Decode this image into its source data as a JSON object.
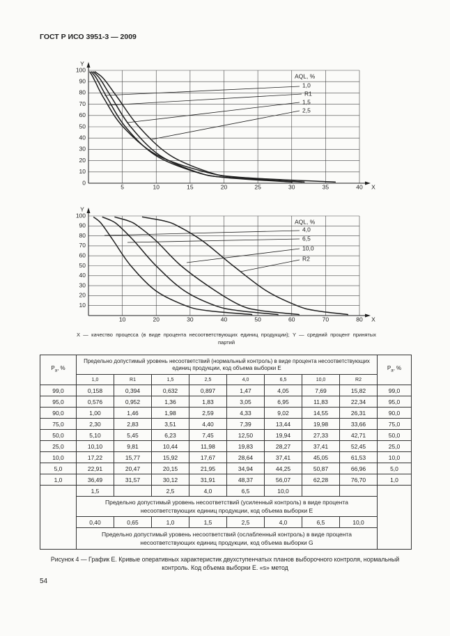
{
  "header": {
    "title": "ГОСТ Р ИСО 3951-3 — 2009"
  },
  "chart_data": [
    {
      "type": "line",
      "ylabel": "Y",
      "xlabel": "X",
      "legend_title": "AQL, %",
      "xlim": [
        0,
        40
      ],
      "ylim": [
        0,
        100
      ],
      "xticks": [
        5,
        10,
        15,
        20,
        25,
        30,
        35,
        40
      ],
      "yticks": [
        0,
        10,
        20,
        30,
        40,
        50,
        60,
        70,
        80,
        90,
        100
      ],
      "grid": true,
      "series": [
        {
          "name": "1,0",
          "color": "#1e1e1e",
          "x": [
            0.158,
            0.576,
            1.0,
            2.3,
            5.1,
            10.1,
            17.22,
            22.91,
            36.49
          ],
          "values": [
            99,
            95,
            90,
            75,
            50,
            25,
            10,
            5,
            1
          ]
        },
        {
          "name": "R1",
          "color": "#1e1e1e",
          "x": [
            0.394,
            0.952,
            1.46,
            2.83,
            5.45,
            9.81,
            15.77,
            20.47,
            31.57
          ],
          "values": [
            99,
            95,
            90,
            75,
            50,
            25,
            10,
            5,
            1
          ]
        },
        {
          "name": "1,5",
          "color": "#1e1e1e",
          "x": [
            0.632,
            1.36,
            1.98,
            3.51,
            6.23,
            10.44,
            15.92,
            20.15,
            30.12
          ],
          "values": [
            99,
            95,
            90,
            75,
            50,
            25,
            10,
            5,
            1
          ]
        },
        {
          "name": "2,5",
          "color": "#1e1e1e",
          "x": [
            0.897,
            1.83,
            2.59,
            4.4,
            7.45,
            11.98,
            17.67,
            21.95,
            31.91
          ],
          "values": [
            99,
            95,
            90,
            75,
            50,
            25,
            10,
            5,
            1
          ]
        }
      ]
    },
    {
      "type": "line",
      "ylabel": "Y",
      "xlabel": "X",
      "legend_title": "AQL, %",
      "xlim": [
        0,
        80
      ],
      "ylim": [
        0,
        100
      ],
      "xticks": [
        10,
        20,
        30,
        40,
        50,
        60,
        70,
        80
      ],
      "yticks": [
        10,
        20,
        30,
        40,
        50,
        60,
        70,
        80,
        90,
        100
      ],
      "grid": true,
      "series": [
        {
          "name": "4,0",
          "color": "#1e1e1e",
          "x": [
            1.47,
            3.05,
            4.33,
            7.39,
            12.5,
            19.83,
            28.64,
            34.94,
            48.37
          ],
          "values": [
            99,
            95,
            90,
            75,
            50,
            25,
            10,
            5,
            1
          ]
        },
        {
          "name": "6,5",
          "color": "#1e1e1e",
          "x": [
            4.05,
            6.95,
            9.02,
            13.44,
            19.94,
            28.27,
            37.41,
            44.25,
            56.07
          ],
          "values": [
            99,
            95,
            90,
            75,
            50,
            25,
            10,
            5,
            1
          ]
        },
        {
          "name": "10,0",
          "color": "#1e1e1e",
          "x": [
            7.69,
            11.83,
            14.55,
            19.98,
            27.33,
            37.41,
            45.05,
            50.87,
            62.28
          ],
          "values": [
            99,
            95,
            90,
            75,
            50,
            25,
            10,
            5,
            1
          ]
        },
        {
          "name": "R2",
          "color": "#1e1e1e",
          "x": [
            15.82,
            22.34,
            26.31,
            33.66,
            42.71,
            52.45,
            61.53,
            66.96,
            76.7
          ],
          "values": [
            99,
            95,
            90,
            75,
            50,
            25,
            10,
            5,
            1
          ]
        }
      ]
    }
  ],
  "chart_note": "X — качество процесса (в виде процента несоответствующих единиц продукции); Y — средний процент принятых партий",
  "table": {
    "pa_header": {
      "symbol": "P",
      "subscript": "a",
      "unit": ", %"
    },
    "normal_header": "Предельно допустимый уровень несоответствий (нормальный контроль) в виде процента несоответствующих единиц продукции, код объема выборки Е",
    "columns": [
      "1,0",
      "R1",
      "1,5",
      "2,5",
      "4,0",
      "6,5",
      "10,0",
      "R2"
    ],
    "rows": [
      [
        "99,0",
        "0,158",
        "0,394",
        "0,632",
        "0,897",
        "1,47",
        "4,05",
        "7,69",
        "15,82",
        "99,0"
      ],
      [
        "95,0",
        "0,576",
        "0,952",
        "1,36",
        "1,83",
        "3,05",
        "6,95",
        "11,83",
        "22,34",
        "95,0"
      ],
      [
        "90,0",
        "1,00",
        "1,46",
        "1,98",
        "2,59",
        "4,33",
        "9,02",
        "14,55",
        "26,31",
        "90,0"
      ],
      [
        "75,0",
        "2,30",
        "2,83",
        "3,51",
        "4,40",
        "7,39",
        "13,44",
        "19,98",
        "33,66",
        "75,0"
      ],
      [
        "50,0",
        "5,10",
        "5,45",
        "6,23",
        "7,45",
        "12,50",
        "19,94",
        "27,33",
        "42,71",
        "50,0"
      ],
      [
        "25,0",
        "10,10",
        "9,81",
        "10,44",
        "11,98",
        "19,83",
        "28,27",
        "37,41",
        "52,45",
        "25,0"
      ],
      [
        "10,0",
        "17,22",
        "15,77",
        "15,92",
        "17,67",
        "28,64",
        "37,41",
        "45,05",
        "61,53",
        "10,0"
      ],
      [
        "5,0",
        "22,91",
        "20,47",
        "20,15",
        "21,95",
        "34,94",
        "44,25",
        "50,87",
        "66,96",
        "5,0"
      ],
      [
        "1,0",
        "36,49",
        "31,57",
        "30,12",
        "31,91",
        "48,37",
        "56,07",
        "62,28",
        "76,70",
        "1,0"
      ]
    ],
    "tightened_values": [
      "1,5",
      null,
      "2,5",
      "4,0",
      "6,5",
      "10,0",
      null,
      null
    ],
    "tightened_header": "Предельно допустимый уровень несоответствий (усиленный контроль) в виде процента несоответствующих единиц продукции, код объема выборки Е",
    "reduced_values": [
      "0,40",
      "0,65",
      "1,0",
      "1,5",
      "2,5",
      "4,0",
      "6,5",
      "10,0"
    ],
    "reduced_header": "Предельно допустимый уровень несоответствий (ослабленный контроль) в виде процента несоответствующих единиц продукции, код объема выборки G"
  },
  "caption": "Рисунок 4 — График Е. Кривые оперативных характеристик двухступенчатых планов выборочного контроля, нормальный контроль. Код объема выборки Е. «s» метод",
  "page_number": "54"
}
